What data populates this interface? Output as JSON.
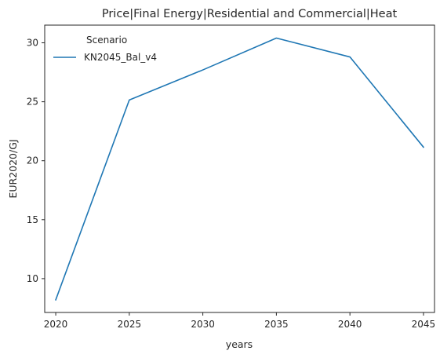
{
  "chart_data": {
    "type": "line",
    "title": "Price|Final Energy|Residential and Commercial|Heat",
    "xlabel": "years",
    "ylabel": "EUR2020/GJ",
    "x": [
      2020,
      2025,
      2030,
      2035,
      2040,
      2045
    ],
    "xticks": [
      2020,
      2025,
      2030,
      2035,
      2040,
      2045
    ],
    "yticks": [
      10,
      15,
      20,
      25,
      30
    ],
    "xlim": [
      2019.25,
      2045.75
    ],
    "ylim": [
      7.13,
      31.5
    ],
    "grid": false,
    "legend": {
      "title": "Scenario",
      "placement": "top-left"
    },
    "series": [
      {
        "name": "KN2045_Bal_v4",
        "color": "#1f77b4",
        "values": [
          8.2,
          25.15,
          27.7,
          30.4,
          28.8,
          21.15
        ]
      }
    ]
  }
}
